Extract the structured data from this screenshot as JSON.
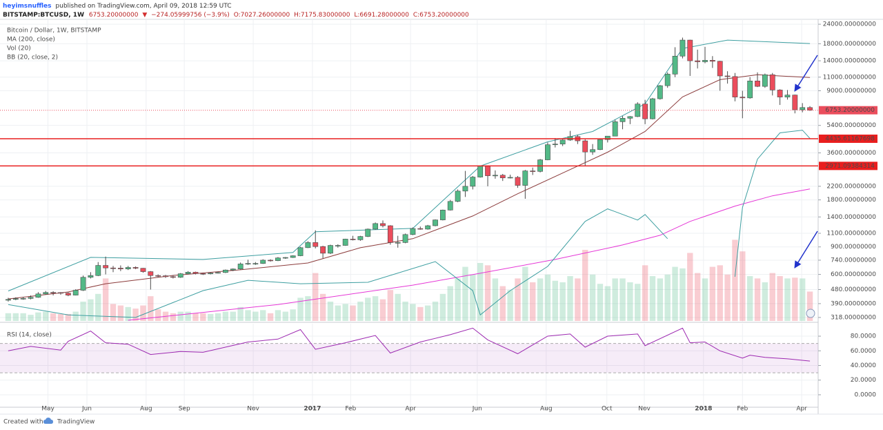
{
  "header": {
    "author": "heyimsnuffles",
    "published": "published on TradingView.com, April 09, 2018 12:59 UTC",
    "symbol": "BITSTAMP:BTCUSD, 1W",
    "last": "6753.20000000",
    "arrow": "▼",
    "change": "−274.05999756 (−3.9%)",
    "open": "O:7027.26000000",
    "high": "H:7175.83000000",
    "low": "L:6691.28000000",
    "close": "C:6753.20000000"
  },
  "chart_data": [
    {
      "type": "candlestick",
      "title": "Bitcoin / Dollar, 1W, BITSTAMP",
      "indicators": [
        "MA (200, close)",
        "Vol (20)",
        "BB (20, close, 2)"
      ],
      "log_scale": true,
      "grid": true,
      "xlim": [
        -1.1,
        108.1
      ],
      "xticks": [
        {
          "value": 5.3,
          "label": "May"
        },
        {
          "value": 10.5,
          "label": "Jun"
        },
        {
          "value": 18.4,
          "label": "Aug"
        },
        {
          "value": 23.5,
          "label": "Sep"
        },
        {
          "value": 32.7,
          "label": "Nov"
        },
        {
          "value": 40.6,
          "label": "2017"
        },
        {
          "value": 45.7,
          "label": "Feb"
        },
        {
          "value": 53.7,
          "label": "Apr"
        },
        {
          "value": 62.6,
          "label": "Jun"
        },
        {
          "value": 71.8,
          "label": "Aug"
        },
        {
          "value": 79.9,
          "label": "Oct"
        },
        {
          "value": 84.9,
          "label": "Nov"
        },
        {
          "value": 92.8,
          "label": "2018"
        },
        {
          "value": 98.0,
          "label": "Feb"
        },
        {
          "value": 105.9,
          "label": "Apr"
        }
      ],
      "ylim": [
        299,
        25800
      ],
      "yticks": [
        {
          "value": 24000,
          "label": "24000.00000000"
        },
        {
          "value": 18000,
          "label": "18000.00000000"
        },
        {
          "value": 14000,
          "label": "14000.00000000"
        },
        {
          "value": 11000,
          "label": "11000.00000000"
        },
        {
          "value": 9000,
          "label": "9000.00000000"
        },
        {
          "value": 5400,
          "label": "5400.00000000"
        },
        {
          "value": 3600,
          "label": "3600.00000000"
        },
        {
          "value": 2200,
          "label": "2200.00000000"
        },
        {
          "value": 1800,
          "label": "1800.00000000"
        },
        {
          "value": 1400,
          "label": "1400.00000000"
        },
        {
          "value": 1100,
          "label": "1100.00000000"
        },
        {
          "value": 900,
          "label": "900.00000000"
        },
        {
          "value": 740,
          "label": "740.00000000"
        },
        {
          "value": 600,
          "label": "600.00000000"
        },
        {
          "value": 480,
          "label": "480.00000000"
        },
        {
          "value": 390,
          "label": "390.00000000"
        },
        {
          "value": 318,
          "label": "318.00000000"
        }
      ],
      "up_color": "#53b987",
      "down_color": "#eb4d5c",
      "open": [
        410,
        415,
        420,
        421,
        428,
        450,
        460,
        459,
        455,
        442,
        475,
        575,
        590,
        685,
        660,
        658,
        650,
        665,
        657,
        625,
        590,
        588,
        580,
        575,
        606,
        620,
        608,
        605,
        612,
        617,
        640,
        650,
        700,
        705,
        705,
        740,
        735,
        765,
        770,
        790,
        890,
        960,
        905,
        820,
        920,
        920,
        1010,
        1000,
        1050,
        1170,
        1270,
        1230,
        960,
        960,
        1080,
        1180,
        1170,
        1230,
        1340,
        1550,
        1760,
        2050,
        2200,
        2520,
        2960,
        2570,
        2590,
        2490,
        2510,
        2230,
        2760,
        2740,
        3250,
        4060,
        4100,
        4350,
        4580,
        4300,
        3650,
        3780,
        4380,
        4610,
        5700,
        6000,
        6150,
        7400,
        5950,
        8000,
        9700,
        11500,
        15000,
        19000,
        14000,
        13800,
        14100,
        13900,
        11200,
        11100,
        8200,
        8100,
        10400,
        9600,
        11400,
        9100,
        8200,
        8450,
        6800,
        7027.26
      ],
      "high": [
        425,
        428,
        430,
        440,
        462,
        470,
        468,
        462,
        460,
        482,
        590,
        620,
        720,
        780,
        680,
        685,
        680,
        675,
        660,
        630,
        600,
        595,
        590,
        612,
        630,
        625,
        612,
        618,
        625,
        645,
        655,
        715,
        745,
        720,
        750,
        750,
        775,
        775,
        795,
        900,
        980,
        1150,
        915,
        930,
        935,
        1015,
        1060,
        1060,
        1180,
        1290,
        1330,
        1240,
        1060,
        1095,
        1200,
        1215,
        1245,
        1350,
        1560,
        1800,
        2100,
        2760,
        2560,
        2980,
        2980,
        2780,
        2640,
        2610,
        2560,
        2800,
        2900,
        3290,
        4200,
        4480,
        4400,
        4980,
        4700,
        4400,
        4100,
        4400,
        4620,
        5860,
        6200,
        6200,
        7600,
        7870,
        8100,
        9800,
        11800,
        17100,
        19700,
        19100,
        16500,
        17200,
        15000,
        14000,
        12000,
        11700,
        9000,
        11000,
        11800,
        11600,
        11700,
        9200,
        9100,
        8500,
        7500,
        7175.83
      ],
      "low": [
        402,
        410,
        413,
        415,
        425,
        445,
        440,
        445,
        435,
        440,
        470,
        565,
        585,
        600,
        620,
        630,
        640,
        648,
        615,
        480,
        575,
        570,
        565,
        570,
        600,
        600,
        595,
        600,
        608,
        612,
        630,
        645,
        690,
        690,
        700,
        725,
        730,
        755,
        765,
        785,
        885,
        880,
        760,
        810,
        890,
        915,
        990,
        985,
        1040,
        1160,
        1200,
        930,
        890,
        950,
        1070,
        1160,
        1160,
        1220,
        1330,
        1540,
        1740,
        1880,
        2100,
        2500,
        2200,
        2460,
        2380,
        2470,
        2150,
        1830,
        2600,
        2700,
        3230,
        3900,
        3980,
        4300,
        4100,
        2980,
        3500,
        3750,
        4200,
        4600,
        5100,
        5500,
        6100,
        5500,
        5900,
        7900,
        9400,
        11000,
        14500,
        11200,
        12500,
        13500,
        12600,
        9000,
        10000,
        7700,
        6000,
        8000,
        9500,
        9400,
        8400,
        7300,
        7900,
        6450,
        6550,
        6691.28
      ],
      "close": [
        415,
        420,
        421,
        428,
        450,
        460,
        459,
        455,
        442,
        475,
        575,
        590,
        685,
        660,
        658,
        650,
        665,
        657,
        625,
        590,
        588,
        580,
        575,
        606,
        620,
        608,
        605,
        612,
        617,
        640,
        650,
        700,
        705,
        705,
        740,
        735,
        765,
        770,
        790,
        890,
        960,
        905,
        820,
        920,
        920,
        1010,
        1000,
        1050,
        1170,
        1270,
        1230,
        960,
        960,
        1080,
        1180,
        1170,
        1230,
        1340,
        1550,
        1760,
        2050,
        2200,
        2520,
        2960,
        2570,
        2590,
        2490,
        2510,
        2230,
        2760,
        2740,
        3250,
        4060,
        4100,
        4350,
        4580,
        4300,
        3650,
        3780,
        4380,
        4610,
        5700,
        6000,
        6150,
        7400,
        5950,
        8000,
        9700,
        11500,
        15000,
        19000,
        14000,
        13800,
        14100,
        13900,
        11200,
        11100,
        8200,
        8100,
        10400,
        9600,
        11400,
        9100,
        8200,
        8450,
        6800,
        7027.26,
        6753.2
      ],
      "volume": [
        10,
        10,
        10,
        8,
        11,
        12,
        10,
        9,
        9,
        12,
        25,
        28,
        35,
        55,
        22,
        20,
        18,
        16,
        20,
        32,
        15,
        12,
        10,
        12,
        12,
        10,
        10,
        9,
        10,
        12,
        12,
        18,
        14,
        12,
        14,
        10,
        14,
        12,
        15,
        30,
        32,
        62,
        35,
        25,
        20,
        22,
        20,
        25,
        30,
        32,
        28,
        40,
        35,
        25,
        22,
        18,
        20,
        25,
        35,
        45,
        55,
        70,
        60,
        75,
        72,
        55,
        45,
        40,
        55,
        70,
        50,
        55,
        60,
        52,
        50,
        58,
        55,
        92,
        60,
        48,
        45,
        55,
        55,
        50,
        48,
        72,
        58,
        55,
        60,
        70,
        68,
        88,
        62,
        55,
        70,
        72,
        60,
        105,
        90,
        58,
        55,
        50,
        62,
        58,
        55,
        56,
        55,
        38
      ],
      "volume_lim": [
        0,
        100
      ],
      "lines": [
        {
          "color": "#e535d6",
          "x": [
            16,
            36,
            54,
            63,
            73,
            82,
            87,
            91,
            97,
            102,
            107
          ],
          "values": [
            305,
            385,
            512,
            610,
            748,
            926,
            1068,
            1311,
            1642,
            1911,
            2115
          ]
        },
        {
          "color": "#8b3b3b",
          "x": [
            0,
            8,
            13,
            22,
            31,
            40,
            47,
            54,
            62,
            68,
            74,
            80,
            85,
            90,
            95,
            100,
            107
          ],
          "values": [
            418,
            463,
            523,
            591,
            642,
            710,
            889,
            1016,
            1420,
            1971,
            2675,
            3636,
            4935,
            8220,
            10600,
            11390,
            10940
          ]
        },
        {
          "color": "#3c9ea0",
          "x": [
            0,
            11,
            26,
            38,
            41,
            54,
            63,
            72,
            78,
            85,
            90,
            96,
            107
          ],
          "values": [
            470,
            771,
            748,
            829,
            1125,
            1183,
            2963,
            4236,
            4935,
            7425,
            16800,
            18990,
            18050
          ]
        },
        {
          "color": "#3c9ea0",
          "x": [
            0,
            8,
            17,
            26,
            32,
            39,
            48,
            57,
            62,
            63,
            67,
            72,
            77,
            80,
            84,
            85,
            88,
            89,
            97,
            98,
            100,
            103,
            106,
            107
          ],
          "values": [
            385,
            330,
            318,
            472,
            550,
            523,
            534,
            725,
            472,
            330,
            472,
            675,
            1311,
            1577,
            1337,
            1451,
            1016,
            null,
            580,
            1609,
            3283,
            4838,
            5034,
            4454
          ]
        }
      ],
      "hline_color": "#e91e1e",
      "hlines": [
        {
          "value": 4435.61167698,
          "label": "4435.61167698"
        },
        {
          "value": 2971.09384314,
          "label": "2971.09384314"
        }
      ],
      "last_price": {
        "value": 6753.2,
        "label": "6753.20000000"
      }
    },
    {
      "type": "line",
      "title": "RSI (14, close)",
      "grid": true,
      "xlim": [
        -1.1,
        108.1
      ],
      "ylim": [
        -17,
        97
      ],
      "yticks": [
        {
          "value": 80,
          "label": "80.0000"
        },
        {
          "value": 60,
          "label": "60.0000"
        },
        {
          "value": 40,
          "label": "40.0000"
        },
        {
          "value": 20,
          "label": "20.0000"
        },
        {
          "value": 0,
          "label": "0.0000"
        }
      ],
      "bands": [
        30,
        70
      ],
      "band_color": "#9c27b0",
      "series": [
        {
          "color": "#9c27b0",
          "x": [
            0,
            3,
            7,
            8,
            11,
            13,
            16,
            19,
            23,
            26,
            32,
            36,
            39,
            41,
            45,
            49,
            51,
            55,
            59,
            62,
            64,
            68,
            72,
            75,
            77,
            80,
            84,
            85,
            90,
            91,
            93,
            95,
            98,
            99,
            101,
            104,
            107
          ],
          "values": [
            60,
            66,
            61,
            73,
            87,
            71,
            69,
            55,
            59,
            58,
            72,
            76,
            89,
            62,
            71,
            81,
            57,
            72,
            82,
            91,
            75,
            56,
            80,
            83,
            65,
            80,
            83,
            67,
            91,
            71,
            72,
            60,
            50,
            54,
            51,
            49,
            46
          ]
        }
      ]
    }
  ],
  "footer": {
    "created_with": "Created with",
    "brand": "TradingView"
  }
}
